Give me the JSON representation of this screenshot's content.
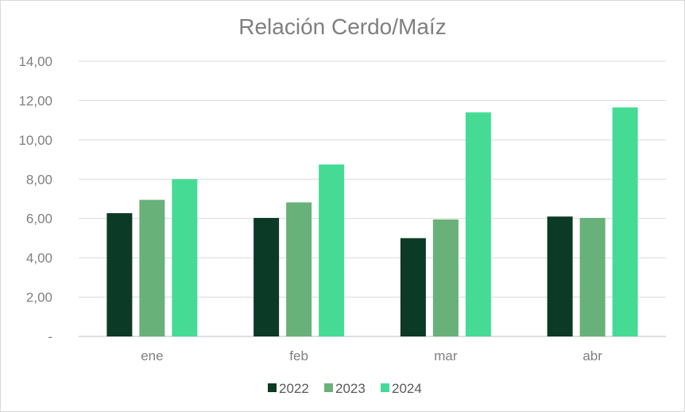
{
  "chart_data": {
    "type": "bar",
    "title": "Relación Cerdo/Maíz",
    "categories": [
      "ene",
      "feb",
      "mar",
      "abr"
    ],
    "series": [
      {
        "name": "2022",
        "color": "#0b3a26",
        "values": [
          6.27,
          6.03,
          5.0,
          6.1
        ]
      },
      {
        "name": "2023",
        "color": "#68b179",
        "values": [
          6.95,
          6.82,
          5.95,
          6.03
        ]
      },
      {
        "name": "2024",
        "color": "#46db95",
        "values": [
          8.0,
          8.75,
          11.4,
          11.65
        ]
      }
    ],
    "ylim": [
      0,
      14
    ],
    "yticks": [
      0,
      2,
      4,
      6,
      8,
      10,
      12,
      14
    ],
    "ytick_labels": [
      "-",
      "2,00",
      "4,00",
      "6,00",
      "8,00",
      "10,00",
      "12,00",
      "14,00"
    ],
    "grid": true,
    "legend_position": "bottom"
  }
}
